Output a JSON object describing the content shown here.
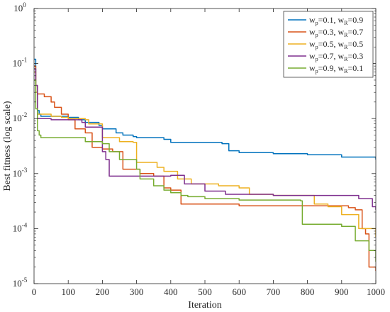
{
  "chart_data": {
    "type": "line",
    "title": "",
    "xlabel": "Iteration",
    "ylabel": "Best fitness (log scale)",
    "xlim": [
      0,
      1000
    ],
    "ylim": [
      1e-05,
      1
    ],
    "y_scale": "log",
    "grid": false,
    "legend_position": "top-right",
    "x_ticks": [
      "0",
      "100",
      "200",
      "300",
      "400",
      "500",
      "600",
      "700",
      "800",
      "900",
      "1000"
    ],
    "y_ticks": [
      {
        "base": "10",
        "exp": "-5"
      },
      {
        "base": "10",
        "exp": "-4"
      },
      {
        "base": "10",
        "exp": "-3"
      },
      {
        "base": "10",
        "exp": "-2"
      },
      {
        "base": "10",
        "exp": "-1"
      },
      {
        "base": "10",
        "exp": "0"
      }
    ],
    "series": [
      {
        "legend": {
          "p_label": "w",
          "p_sub": "p",
          "p_val": "=0.1, ",
          "r_label": "w",
          "r_sub": "R",
          "r_val": "=0.9"
        },
        "color": "#0072BD",
        "x": [
          0,
          5,
          10,
          15,
          20,
          40,
          50,
          100,
          130,
          150,
          190,
          200,
          240,
          260,
          290,
          300,
          380,
          400,
          500,
          550,
          570,
          600,
          700,
          800,
          900,
          1000
        ],
        "y": [
          0.12,
          0.03,
          0.014,
          0.012,
          0.011,
          0.011,
          0.011,
          0.0105,
          0.0095,
          0.0085,
          0.0075,
          0.0065,
          0.0055,
          0.005,
          0.0047,
          0.0045,
          0.0042,
          0.0037,
          0.0037,
          0.0035,
          0.0026,
          0.0024,
          0.0023,
          0.0022,
          0.002,
          0.0018
        ]
      },
      {
        "legend": {
          "p_label": "w",
          "p_sub": "p",
          "p_val": "=0.3, ",
          "r_label": "w",
          "r_sub": "R",
          "r_val": "=0.7"
        },
        "color": "#D95319",
        "x": [
          0,
          5,
          10,
          30,
          50,
          60,
          80,
          100,
          120,
          150,
          170,
          200,
          230,
          260,
          300,
          310,
          350,
          380,
          400,
          430,
          600,
          900,
          920,
          940,
          960,
          970,
          980,
          1000
        ],
        "y": [
          0.09,
          0.04,
          0.028,
          0.025,
          0.02,
          0.016,
          0.012,
          0.0095,
          0.0065,
          0.0055,
          0.003,
          0.0028,
          0.0025,
          0.0012,
          0.0012,
          0.001,
          0.0009,
          0.00055,
          0.0005,
          0.00028,
          0.00026,
          0.00026,
          0.00024,
          0.00022,
          0.0001,
          8e-05,
          2e-05,
          1.7e-05
        ]
      },
      {
        "legend": {
          "p_label": "w",
          "p_sub": "p",
          "p_val": "=0.5, ",
          "r_label": "w",
          "r_sub": "R",
          "r_val": "=0.5"
        },
        "color": "#EDB120",
        "x": [
          0,
          5,
          10,
          50,
          80,
          100,
          150,
          160,
          200,
          250,
          290,
          300,
          360,
          380,
          420,
          460,
          480,
          540,
          600,
          630,
          700,
          790,
          820,
          860,
          900,
          950,
          1000
        ],
        "y": [
          0.07,
          0.03,
          0.012,
          0.011,
          0.0105,
          0.01,
          0.0095,
          0.008,
          0.0045,
          0.0038,
          0.0037,
          0.0016,
          0.0013,
          0.0011,
          0.0008,
          0.00065,
          0.00065,
          0.0006,
          0.00055,
          0.00042,
          0.0004,
          0.0004,
          0.00028,
          0.00025,
          0.00018,
          0.0001,
          7e-05
        ]
      },
      {
        "legend": {
          "p_label": "w",
          "p_sub": "p",
          "p_val": "=0.7, ",
          "r_label": "w",
          "r_sub": "R",
          "r_val": "=0.3"
        },
        "color": "#7E2F8E",
        "x": [
          0,
          5,
          10,
          50,
          100,
          140,
          150,
          200,
          210,
          220,
          240,
          250,
          300,
          330,
          360,
          390,
          400,
          440,
          500,
          560,
          600,
          700,
          800,
          900,
          950,
          990,
          1000
        ],
        "y": [
          0.08,
          0.04,
          0.01,
          0.0095,
          0.0095,
          0.0085,
          0.007,
          0.0025,
          0.0018,
          0.0009,
          0.0009,
          0.0009,
          0.0009,
          0.0009,
          0.0009,
          0.0009,
          0.00093,
          0.00065,
          0.00048,
          0.00042,
          0.00042,
          0.0004,
          0.0004,
          0.0004,
          0.00035,
          0.00025,
          0.00022
        ]
      },
      {
        "legend": {
          "p_label": "w",
          "p_sub": "p",
          "p_val": "=0.9, ",
          "r_label": "w",
          "r_sub": "R",
          "r_val": "=0.1"
        },
        "color": "#77AC30",
        "x": [
          0,
          5,
          10,
          15,
          20,
          50,
          100,
          150,
          200,
          220,
          250,
          300,
          310,
          350,
          380,
          400,
          430,
          450,
          500,
          600,
          700,
          780,
          785,
          800,
          900,
          940,
          980,
          1000
        ],
        "y": [
          0.05,
          0.015,
          0.006,
          0.005,
          0.0045,
          0.0045,
          0.0045,
          0.0038,
          0.0035,
          0.0025,
          0.0018,
          0.0012,
          0.0008,
          0.0006,
          0.0005,
          0.00045,
          0.0004,
          0.00038,
          0.00035,
          0.00033,
          0.00033,
          0.00032,
          0.00012,
          0.00012,
          0.00011,
          6e-05,
          4e-05,
          2.5e-05
        ]
      }
    ]
  }
}
